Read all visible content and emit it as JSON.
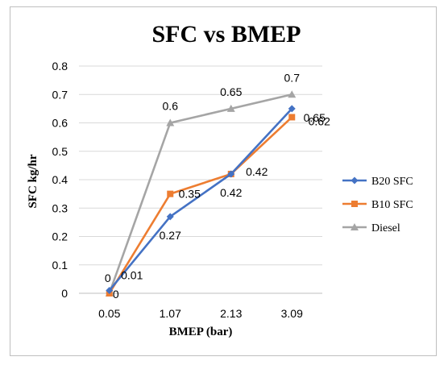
{
  "chart_data": {
    "type": "line",
    "title": "SFC vs BMEP",
    "xlabel": "BMEP (bar)",
    "ylabel": "SFC kg/hr",
    "categories": [
      "0.05",
      "1.07",
      "2.13",
      "3.09"
    ],
    "ylim": [
      0,
      0.8
    ],
    "yticks": [
      "0",
      "0.1",
      "0.2",
      "0.3",
      "0.4",
      "0.5",
      "0.6",
      "0.7",
      "0.8"
    ],
    "grid": "horizontal",
    "legend_position": "right",
    "series": [
      {
        "name": "B20 SFC",
        "values": [
          0.01,
          0.27,
          0.42,
          0.65
        ],
        "labels": [
          "0.01",
          "0.27",
          "0.42",
          "0.65"
        ],
        "color": "#4472c4",
        "marker": "diamond"
      },
      {
        "name": "B10 SFC",
        "values": [
          0,
          0.35,
          0.42,
          0.62
        ],
        "labels": [
          "0",
          "0.35",
          "0.42",
          "0.62"
        ],
        "color": "#ed7d31",
        "marker": "square"
      },
      {
        "name": "Diesel",
        "values": [
          0,
          0.6,
          0.65,
          0.7
        ],
        "labels": [
          "0",
          "0.6",
          "0.65",
          "0.7"
        ],
        "color": "#a5a5a5",
        "marker": "triangle"
      }
    ]
  }
}
